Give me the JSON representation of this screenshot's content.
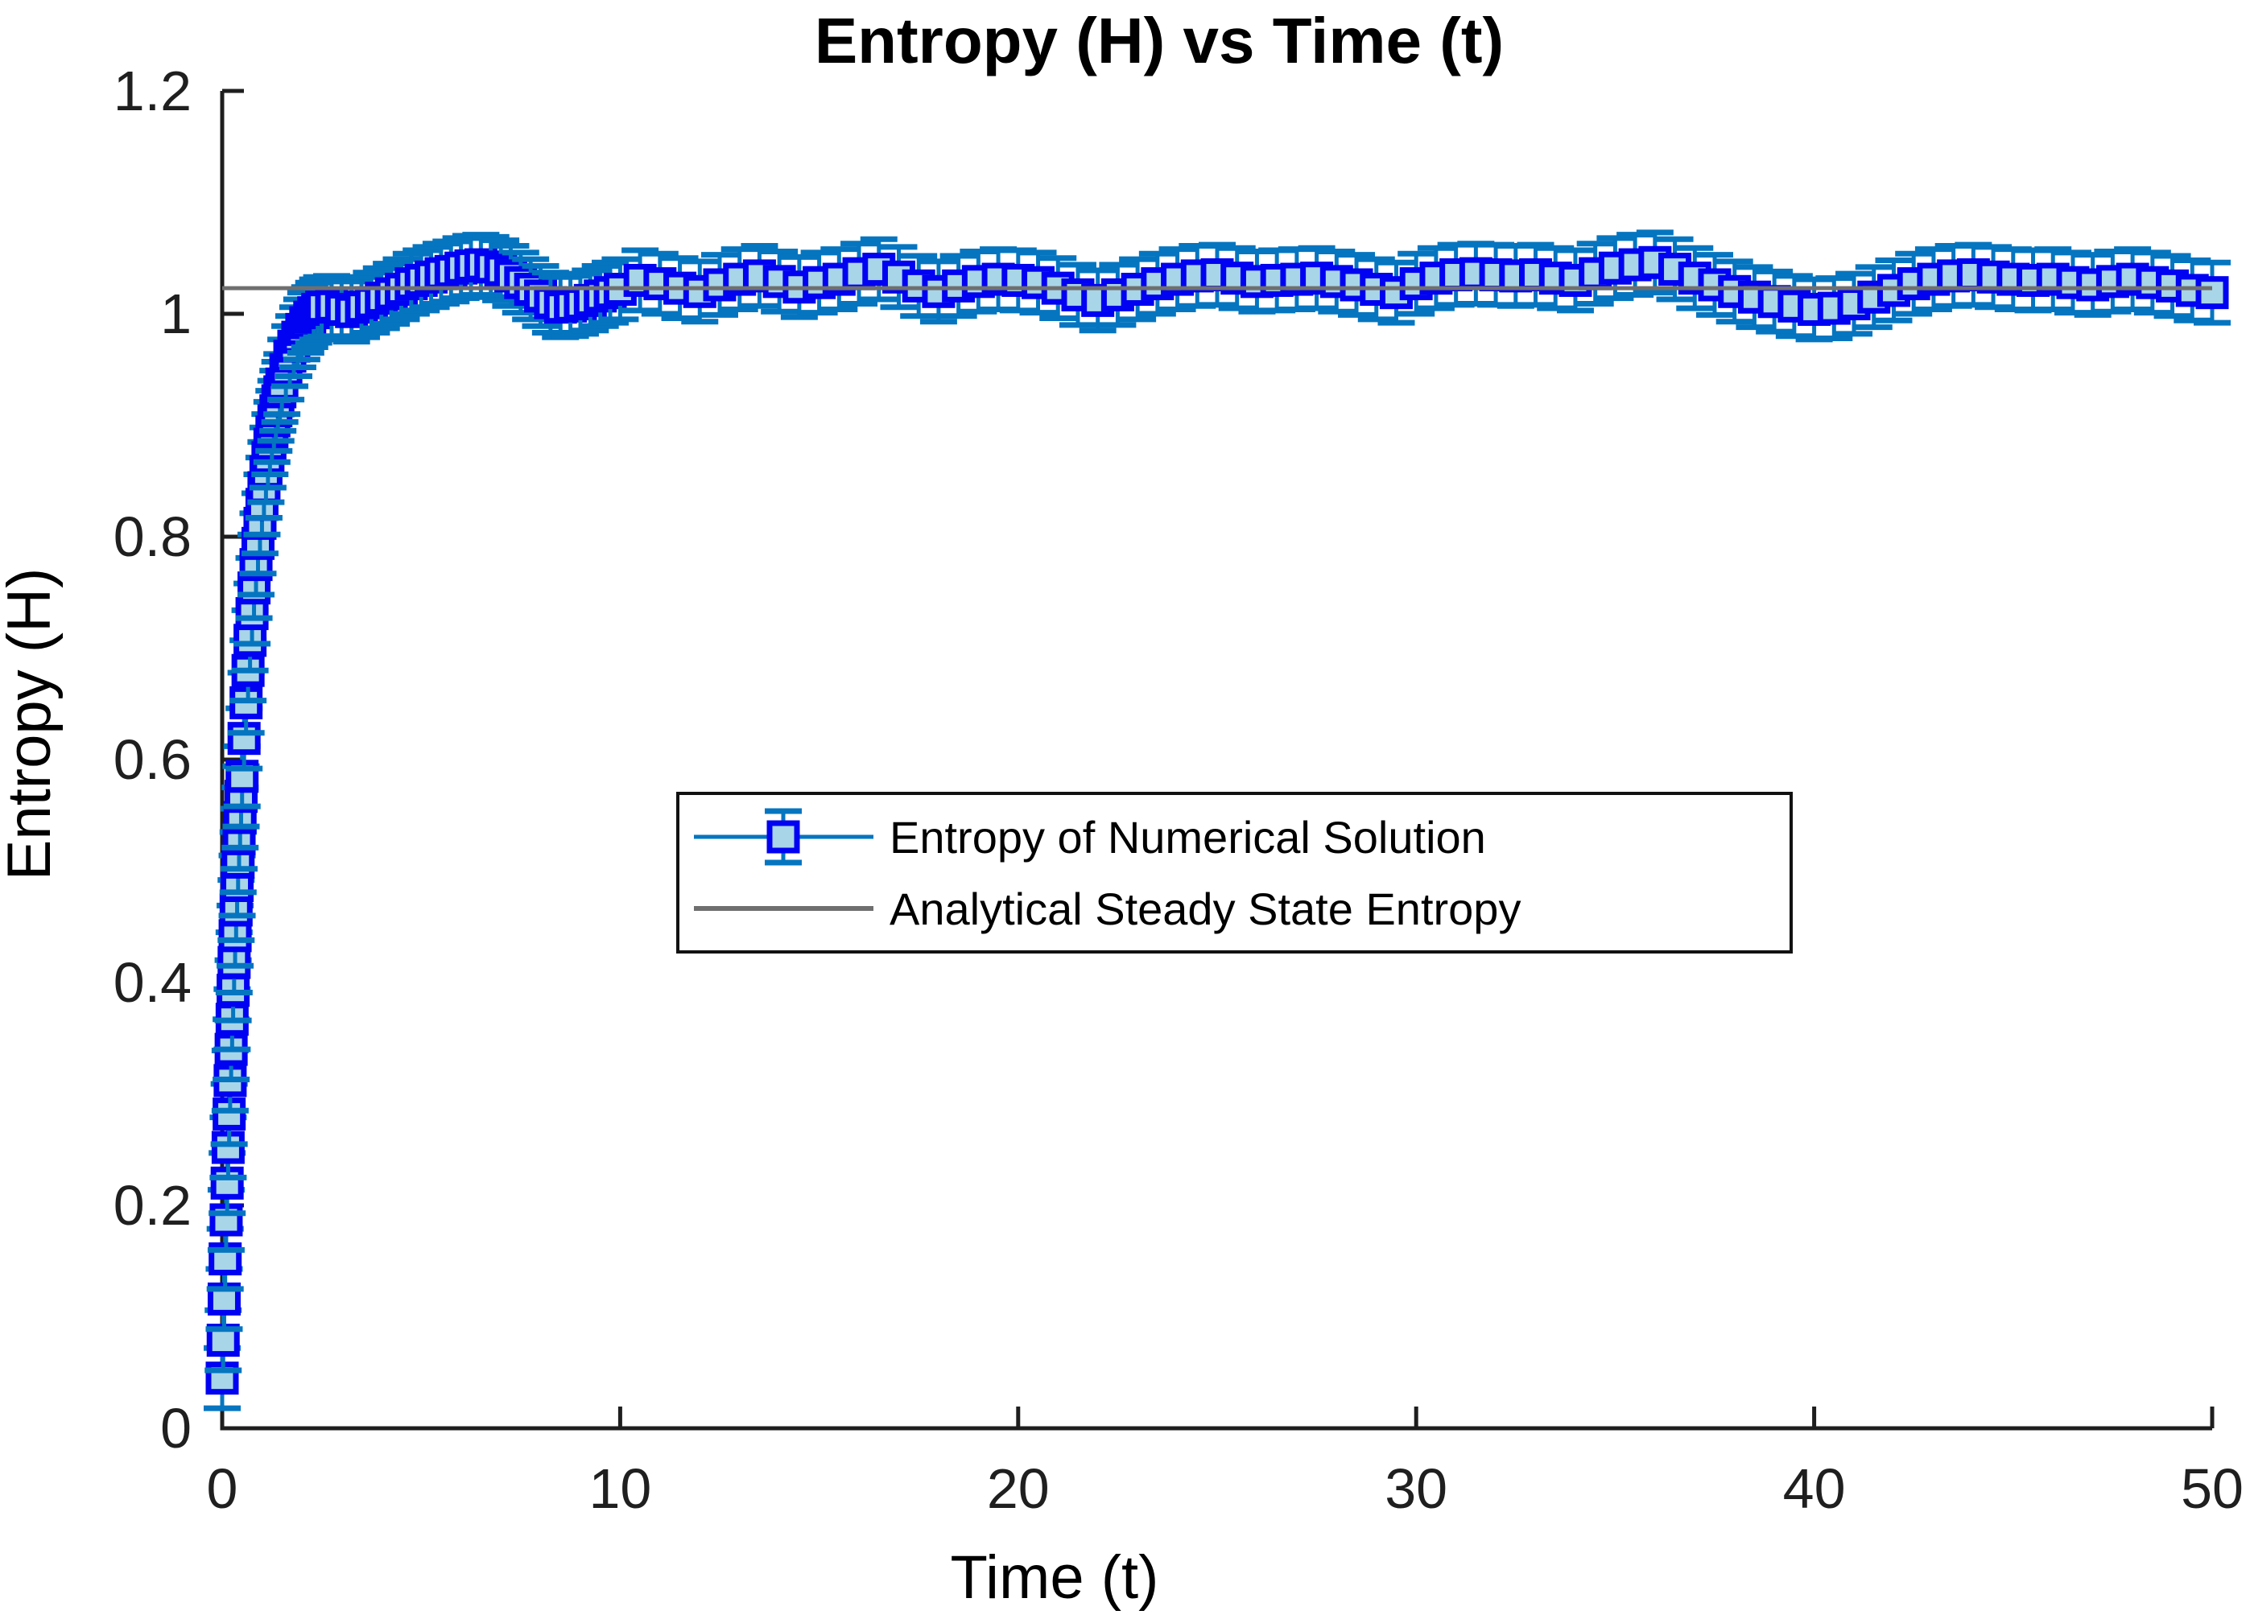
{
  "title": "Entropy (H) vs Time (t)",
  "colors": {
    "errorbar": "#0575c0",
    "line": "#0202f2",
    "marker_face": "#a9d5e8",
    "steady": "#6f6f6f",
    "axis": "#1e1e1e"
  },
  "axes": {
    "xlabel": "Time (t)",
    "ylabel": "Entropy (H)",
    "x_tick_values": [
      0,
      10,
      20,
      30,
      40,
      50
    ],
    "x_tick_labels": [
      "0",
      "10",
      "20",
      "30",
      "40",
      "50"
    ],
    "y_tick_values": [
      0,
      0.2,
      0.4,
      0.6,
      0.8,
      1,
      1.2
    ],
    "y_tick_labels": [
      "0",
      "0.2",
      "0.4",
      "0.6",
      "0.8",
      "1",
      "1.2"
    ],
    "xlim": [
      0,
      50
    ],
    "ylim": [
      0,
      1.2
    ]
  },
  "legend": {
    "entries": [
      {
        "label": "Entropy of Numerical Solution"
      },
      {
        "label": "Analytical Steady State Entropy"
      }
    ]
  },
  "chart_data": {
    "type": "line",
    "title": "Entropy (H) vs Time (t)",
    "xlabel": "Time (t)",
    "ylabel": "Entropy (H)",
    "xlim": [
      0,
      50
    ],
    "ylim": [
      0,
      1.2
    ],
    "grid": false,
    "legend_position": "center",
    "series": [
      {
        "name": "Entropy of Numerical Solution",
        "style": "errorbar-line-square-marker",
        "error_bar": 0.027,
        "points": [
          [
            0,
            0.045
          ],
          [
            0.025,
            0.079
          ],
          [
            0.05,
            0.116
          ],
          [
            0.075,
            0.152
          ],
          [
            0.1,
            0.187
          ],
          [
            0.125,
            0.22
          ],
          [
            0.15,
            0.252
          ],
          [
            0.175,
            0.282
          ],
          [
            0.2,
            0.312
          ],
          [
            0.225,
            0.34
          ],
          [
            0.25,
            0.367
          ],
          [
            0.275,
            0.393
          ],
          [
            0.3,
            0.418
          ],
          [
            0.325,
            0.442
          ],
          [
            0.35,
            0.465
          ],
          [
            0.375,
            0.487
          ],
          [
            0.4,
            0.508
          ],
          [
            0.425,
            0.529
          ],
          [
            0.45,
            0.548
          ],
          [
            0.475,
            0.567
          ],
          [
            0.5,
            0.585
          ],
          [
            0.55,
            0.619
          ],
          [
            0.6,
            0.651
          ],
          [
            0.65,
            0.68
          ],
          [
            0.7,
            0.707
          ],
          [
            0.75,
            0.731
          ],
          [
            0.8,
            0.754
          ],
          [
            0.85,
            0.775
          ],
          [
            0.9,
            0.794
          ],
          [
            0.95,
            0.812
          ],
          [
            1,
            0.829
          ],
          [
            1.05,
            0.844
          ],
          [
            1.1,
            0.858
          ],
          [
            1.15,
            0.871
          ],
          [
            1.2,
            0.883
          ],
          [
            1.25,
            0.894
          ],
          [
            1.3,
            0.904
          ],
          [
            1.35,
            0.913
          ],
          [
            1.4,
            0.922
          ],
          [
            1.45,
            0.93
          ],
          [
            1.5,
            0.937
          ],
          [
            1.6,
            0.95
          ],
          [
            1.7,
            0.962
          ],
          [
            1.8,
            0.971
          ],
          [
            1.9,
            0.979
          ],
          [
            2,
            0.986
          ],
          [
            2.1,
            0.992
          ],
          [
            2.2,
            0.997
          ],
          [
            2.3,
            1.001
          ],
          [
            2.4,
            1.004
          ],
          [
            2.5,
            1.006
          ],
          [
            2.75,
            1.007
          ],
          [
            3,
            1.004
          ],
          [
            3.25,
            1.002
          ],
          [
            3.5,
            1.006
          ],
          [
            3.75,
            1.01
          ],
          [
            4,
            1.014
          ],
          [
            4.25,
            1.018
          ],
          [
            4.5,
            1.022
          ],
          [
            4.75,
            1.027
          ],
          [
            5,
            1.03
          ],
          [
            5.25,
            1.033
          ],
          [
            5.5,
            1.036
          ],
          [
            5.75,
            1.038
          ],
          [
            6,
            1.041
          ],
          [
            6.25,
            1.043
          ],
          [
            6.5,
            1.044
          ],
          [
            6.75,
            1.042
          ],
          [
            7,
            1.039
          ],
          [
            7.25,
            1.034
          ],
          [
            7.5,
            1.028
          ],
          [
            7.75,
            1.022
          ],
          [
            8,
            1.016
          ],
          [
            8.25,
            1.01
          ],
          [
            8.5,
            1.006
          ],
          [
            8.75,
            1.007
          ],
          [
            9,
            1.009
          ],
          [
            9.25,
            1.012
          ],
          [
            9.5,
            1.016
          ],
          [
            9.75,
            1.019
          ],
          [
            10,
            1.022
          ],
          [
            10.5,
            1.03
          ],
          [
            11,
            1.027
          ],
          [
            11.5,
            1.023
          ],
          [
            12,
            1.02
          ],
          [
            12.5,
            1.026
          ],
          [
            13,
            1.031
          ],
          [
            13.5,
            1.034
          ],
          [
            14,
            1.029
          ],
          [
            14.5,
            1.024
          ],
          [
            15,
            1.028
          ],
          [
            15.5,
            1.031
          ],
          [
            16,
            1.036
          ],
          [
            16.5,
            1.04
          ],
          [
            17,
            1.033
          ],
          [
            17.5,
            1.025
          ],
          [
            18,
            1.02
          ],
          [
            18.5,
            1.025
          ],
          [
            19,
            1.029
          ],
          [
            19.5,
            1.031
          ],
          [
            20,
            1.03
          ],
          [
            20.5,
            1.028
          ],
          [
            21,
            1.023
          ],
          [
            21.5,
            1.017
          ],
          [
            22,
            1.012
          ],
          [
            22.5,
            1.017
          ],
          [
            23,
            1.022
          ],
          [
            23.5,
            1.027
          ],
          [
            24,
            1.031
          ],
          [
            24.5,
            1.034
          ],
          [
            25,
            1.035
          ],
          [
            25.5,
            1.032
          ],
          [
            26,
            1.029
          ],
          [
            26.5,
            1.03
          ],
          [
            27,
            1.031
          ],
          [
            27.5,
            1.032
          ],
          [
            28,
            1.029
          ],
          [
            28.5,
            1.026
          ],
          [
            29,
            1.022
          ],
          [
            29.5,
            1.019
          ],
          [
            30,
            1.027
          ],
          [
            30.5,
            1.032
          ],
          [
            31,
            1.035
          ],
          [
            31.5,
            1.036
          ],
          [
            32,
            1.035
          ],
          [
            32.5,
            1.034
          ],
          [
            33,
            1.035
          ],
          [
            33.5,
            1.032
          ],
          [
            34,
            1.03
          ],
          [
            34.5,
            1.036
          ],
          [
            35,
            1.041
          ],
          [
            35.5,
            1.044
          ],
          [
            36,
            1.046
          ],
          [
            36.5,
            1.04
          ],
          [
            37,
            1.032
          ],
          [
            37.5,
            1.026
          ],
          [
            38,
            1.02
          ],
          [
            38.5,
            1.015
          ],
          [
            39,
            1.011
          ],
          [
            39.5,
            1.007
          ],
          [
            40,
            1.004
          ],
          [
            40.5,
            1.005
          ],
          [
            41,
            1.009
          ],
          [
            41.5,
            1.015
          ],
          [
            42,
            1.021
          ],
          [
            42.5,
            1.027
          ],
          [
            43,
            1.031
          ],
          [
            43.5,
            1.034
          ],
          [
            44,
            1.035
          ],
          [
            44.5,
            1.033
          ],
          [
            45,
            1.031
          ],
          [
            45.5,
            1.03
          ],
          [
            46,
            1.031
          ],
          [
            46.5,
            1.028
          ],
          [
            47,
            1.026
          ],
          [
            47.5,
            1.029
          ],
          [
            48,
            1.031
          ],
          [
            48.5,
            1.028
          ],
          [
            49,
            1.025
          ],
          [
            49.5,
            1.021
          ],
          [
            50,
            1.019
          ]
        ]
      },
      {
        "name": "Analytical Steady State Entropy",
        "style": "hline",
        "value": 1.023
      }
    ]
  }
}
